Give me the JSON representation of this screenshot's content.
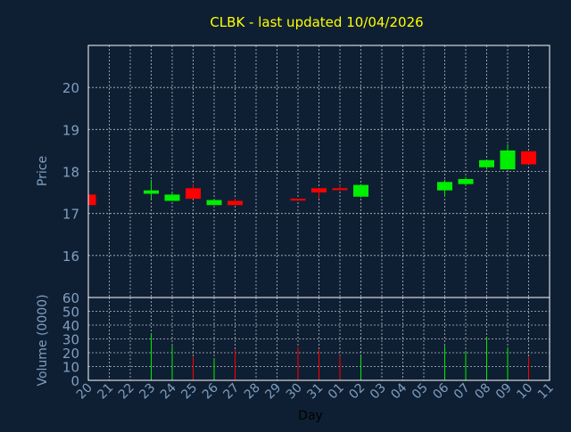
{
  "chart_data": {
    "type": "candlestick",
    "title": "CLBK - last updated 10/04/2026",
    "xlabel": "Day",
    "grid": true,
    "colors": {
      "background": "#0f1f33",
      "frame": "#ffffff",
      "grid": "#ffffff",
      "axis_text": "#7f9fbf",
      "title": "#ffff00",
      "up": "#00ee00",
      "down": "#ff0000"
    },
    "categories": [
      "20",
      "21",
      "22",
      "23",
      "24",
      "25",
      "26",
      "27",
      "28",
      "29",
      "30",
      "31",
      "01",
      "02",
      "03",
      "04",
      "05",
      "06",
      "07",
      "08",
      "09",
      "10",
      "11"
    ],
    "price_panel": {
      "ylabel": "Price",
      "ylim": [
        15,
        21
      ],
      "yticks": [
        16,
        17,
        18,
        19,
        20
      ],
      "candles": [
        {
          "day": "20",
          "open": 17.45,
          "high": 17.45,
          "low": 17.2,
          "close": 17.2
        },
        {
          "day": "23",
          "open": 17.47,
          "high": 17.8,
          "low": 17.35,
          "close": 17.55
        },
        {
          "day": "24",
          "open": 17.3,
          "high": 17.5,
          "low": 17.3,
          "close": 17.45
        },
        {
          "day": "25",
          "open": 17.6,
          "high": 17.7,
          "low": 17.35,
          "close": 17.35
        },
        {
          "day": "26",
          "open": 17.2,
          "high": 17.35,
          "low": 17.2,
          "close": 17.32
        },
        {
          "day": "27",
          "open": 17.3,
          "high": 17.35,
          "low": 17.2,
          "close": 17.2
        },
        {
          "day": "30",
          "open": 17.35,
          "high": 17.35,
          "low": 17.3,
          "close": 17.31
        },
        {
          "day": "31",
          "open": 17.6,
          "high": 17.6,
          "low": 17.35,
          "close": 17.5
        },
        {
          "day": "01",
          "open": 17.6,
          "high": 17.68,
          "low": 17.55,
          "close": 17.56
        },
        {
          "day": "02",
          "open": 17.4,
          "high": 17.7,
          "low": 17.38,
          "close": 17.68
        },
        {
          "day": "06",
          "open": 17.55,
          "high": 17.8,
          "low": 17.4,
          "close": 17.75
        },
        {
          "day": "07",
          "open": 17.7,
          "high": 17.87,
          "low": 17.65,
          "close": 17.82
        },
        {
          "day": "08",
          "open": 18.1,
          "high": 18.27,
          "low": 18.05,
          "close": 18.27
        },
        {
          "day": "09",
          "open": 18.05,
          "high": 18.65,
          "low": 18.05,
          "close": 18.5
        },
        {
          "day": "10",
          "open": 18.48,
          "high": 18.48,
          "low": 18.17,
          "close": 18.17
        }
      ]
    },
    "volume_panel": {
      "ylabel": "Volume (0000)",
      "ylim": [
        0,
        60
      ],
      "yticks": [
        0,
        10,
        20,
        30,
        40,
        50,
        60
      ],
      "bars": [
        {
          "day": "20",
          "value": 0,
          "dir": "down"
        },
        {
          "day": "23",
          "value": 34,
          "dir": "up"
        },
        {
          "day": "24",
          "value": 25,
          "dir": "up"
        },
        {
          "day": "25",
          "value": 17,
          "dir": "down"
        },
        {
          "day": "26",
          "value": 16,
          "dir": "up"
        },
        {
          "day": "27",
          "value": 22,
          "dir": "down"
        },
        {
          "day": "30",
          "value": 24,
          "dir": "down"
        },
        {
          "day": "31",
          "value": 22,
          "dir": "down"
        },
        {
          "day": "01",
          "value": 18,
          "dir": "down"
        },
        {
          "day": "02",
          "value": 18,
          "dir": "up"
        },
        {
          "day": "06",
          "value": 25,
          "dir": "up"
        },
        {
          "day": "07",
          "value": 21,
          "dir": "up"
        },
        {
          "day": "08",
          "value": 31,
          "dir": "up"
        },
        {
          "day": "09",
          "value": 24,
          "dir": "up"
        },
        {
          "day": "10",
          "value": 17,
          "dir": "down"
        }
      ]
    }
  }
}
